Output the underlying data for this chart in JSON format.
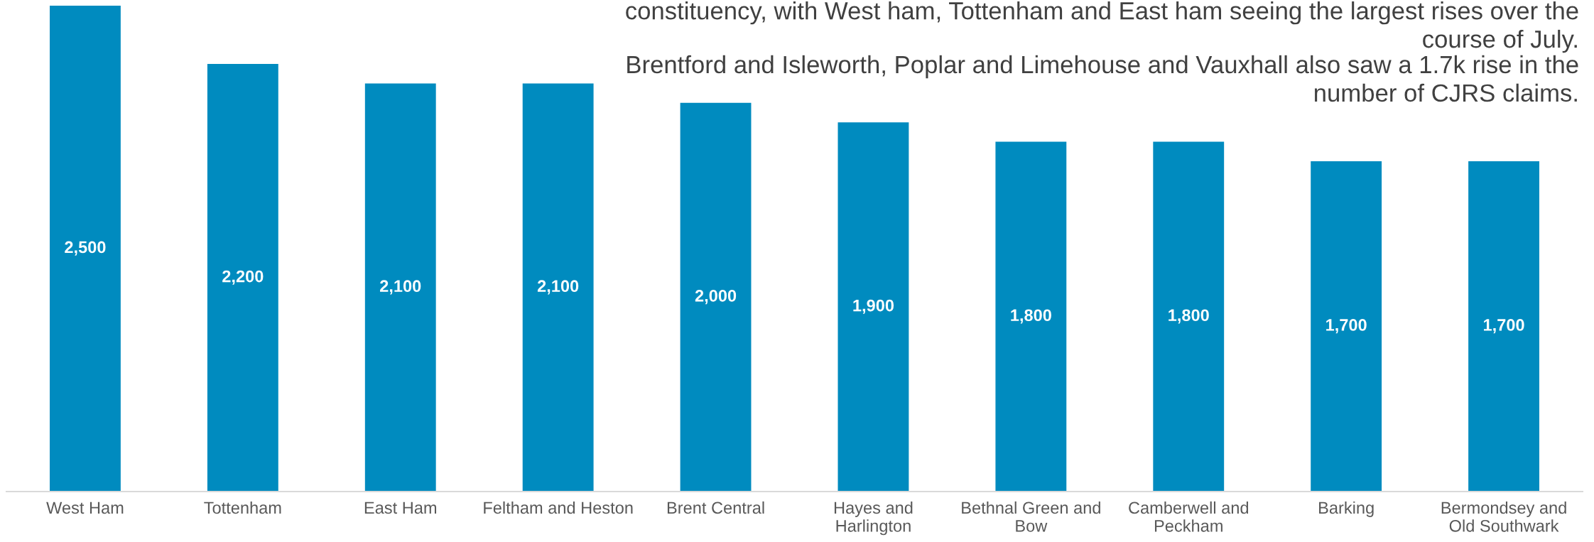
{
  "chart_data": {
    "type": "bar",
    "categories": [
      "West Ham",
      "Tottenham",
      "East Ham",
      "Feltham and Heston",
      "Brent Central",
      "Hayes and\nHarlington",
      "Bethnal Green and\nBow",
      "Camberwell and\nPeckham",
      "Barking",
      "Bermondsey and\nOld Southwark"
    ],
    "values": [
      2500,
      2200,
      2100,
      2100,
      2000,
      1900,
      1800,
      1800,
      1700,
      1700
    ],
    "value_labels": [
      "2,500",
      "2,200",
      "2,100",
      "2,100",
      "2,000",
      "1,900",
      "1,800",
      "1,800",
      "1,700",
      "1,700"
    ],
    "color": "#008bbf",
    "tick_labels": "x",
    "annotations": [
      "constituency, with West ham, Tottenham and East ham seeing the largest rises over the course of July.",
      "Brentford and Isleworth, Poplar and Limehouse and Vauxhall also saw a 1.7k rise in the number of CJRS claims."
    ]
  }
}
